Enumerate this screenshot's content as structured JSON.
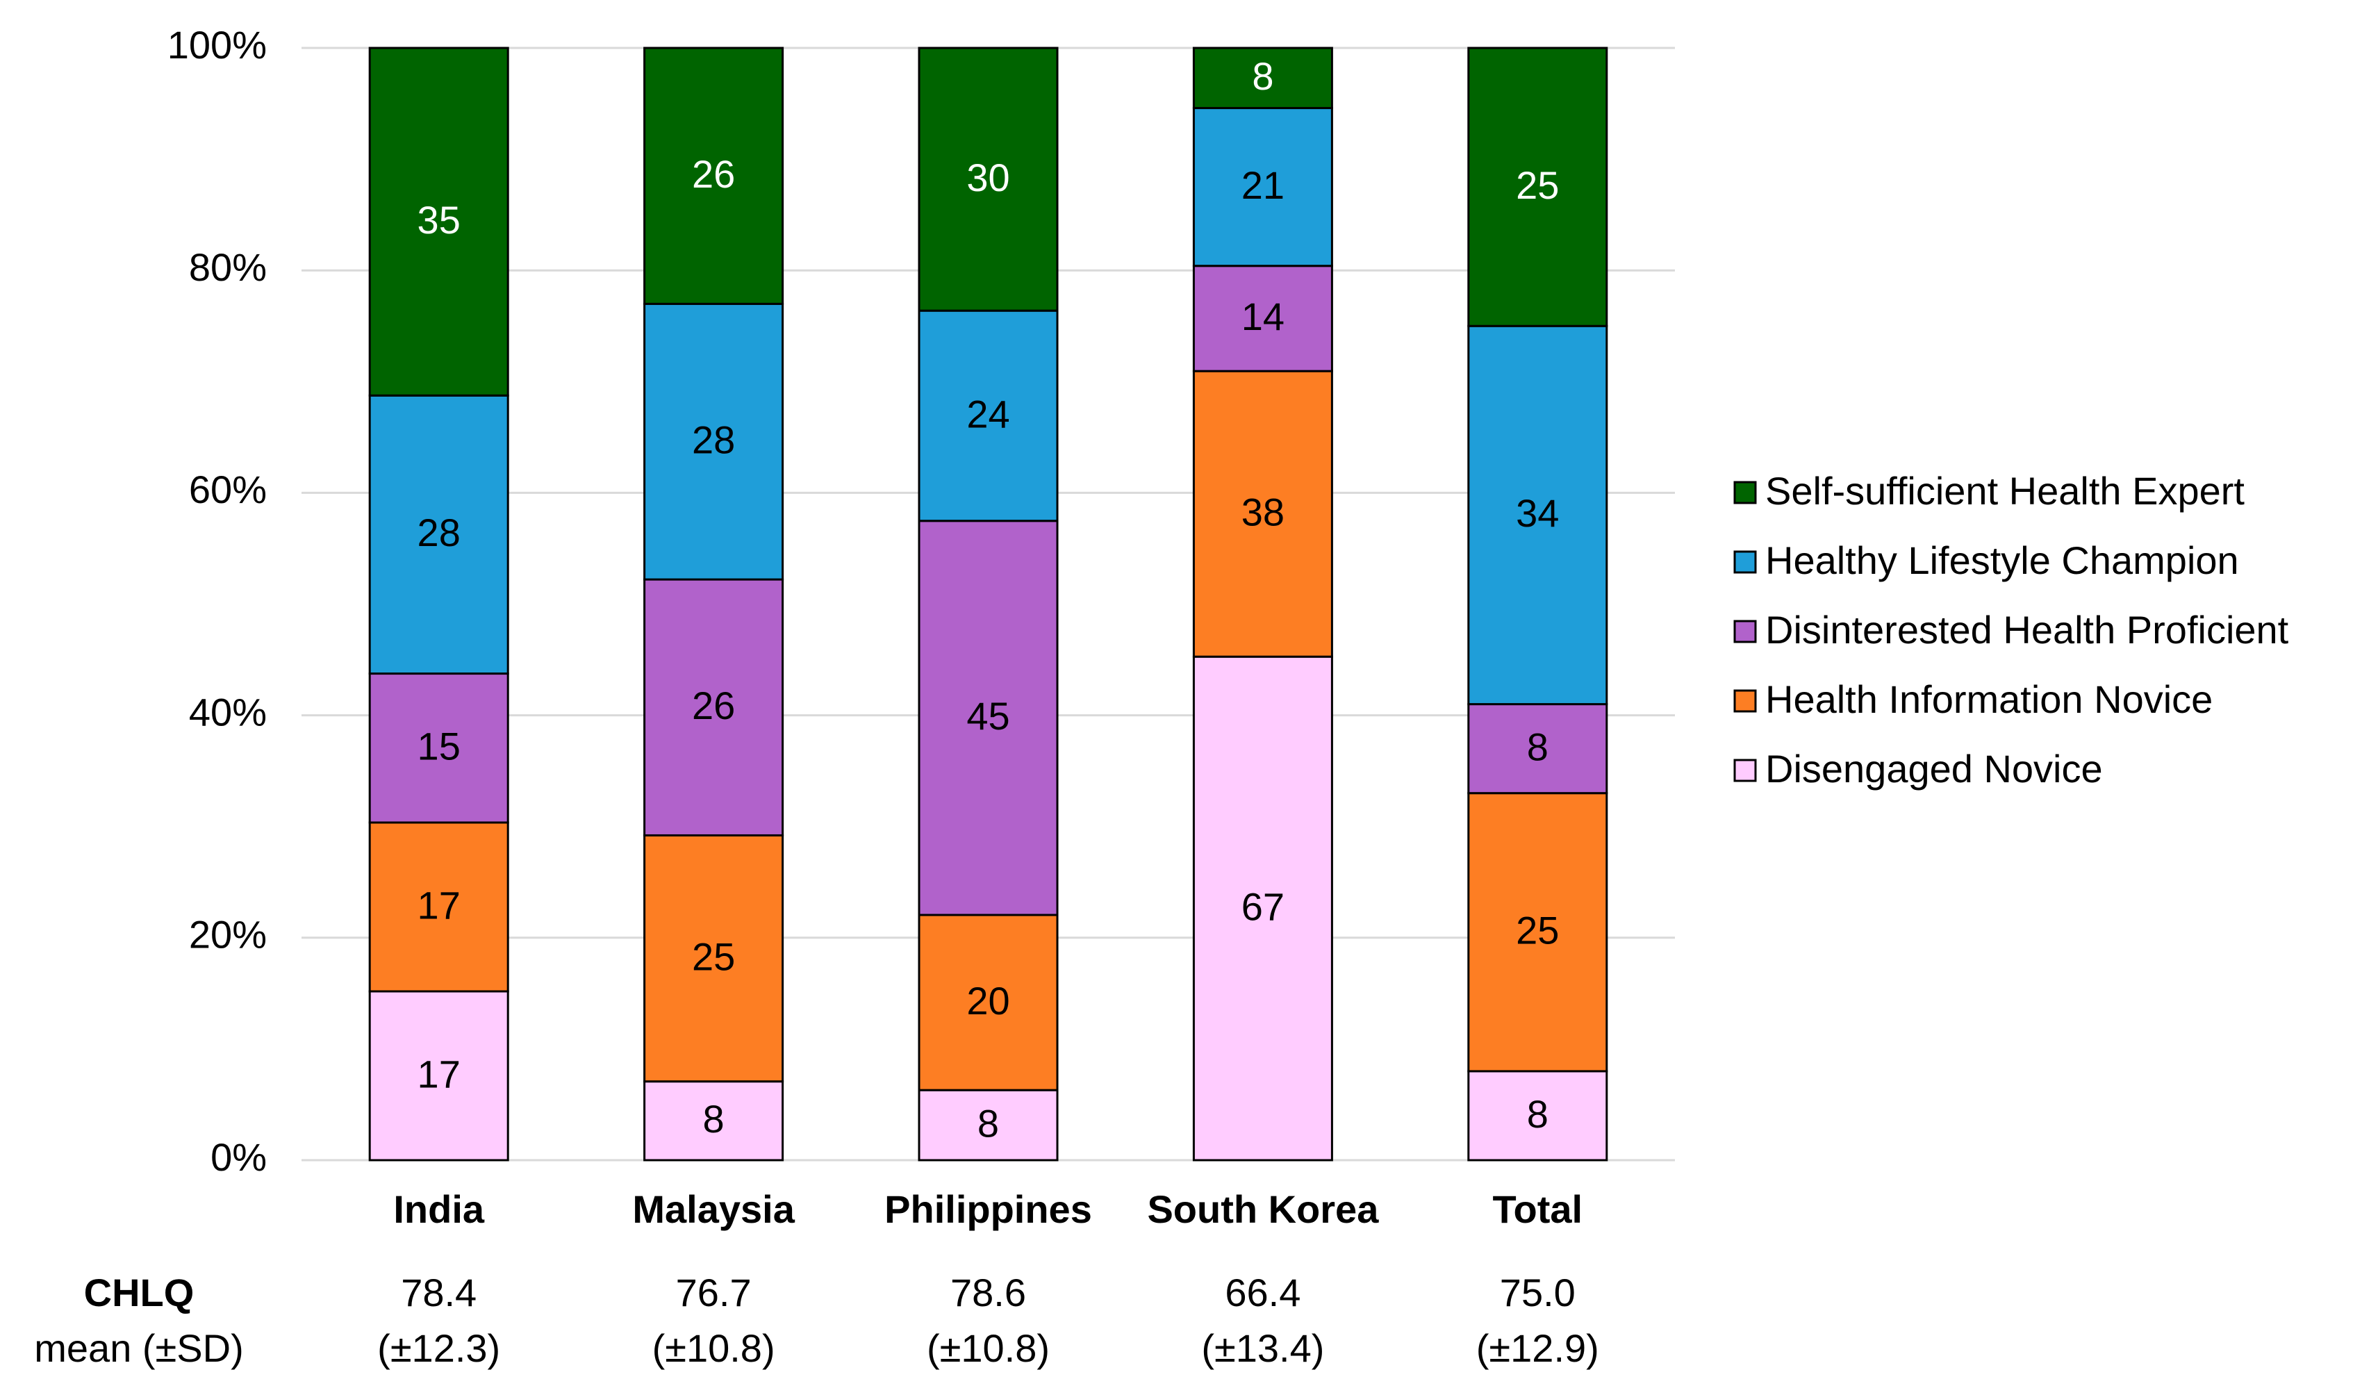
{
  "chart_data": {
    "type": "bar",
    "stacked": "percent",
    "categories": [
      "India",
      "Malaysia",
      "Philippines",
      "South Korea",
      "Total"
    ],
    "series": [
      {
        "name": "Disengaged Novice",
        "color": "#ffccff",
        "label_color": "#000000",
        "values": [
          17,
          8,
          8,
          67,
          8
        ]
      },
      {
        "name": "Health Information Novice",
        "color": "#fd7e23",
        "label_color": "#000000",
        "values": [
          17,
          25,
          20,
          38,
          25
        ]
      },
      {
        "name": "Disinterested Health Proficient",
        "color": "#b162cb",
        "label_color": "#000000",
        "values": [
          15,
          26,
          45,
          14,
          8
        ]
      },
      {
        "name": "Healthy Lifestyle Champion",
        "color": "#1f9ed9",
        "label_color": "#000000",
        "values": [
          28,
          28,
          24,
          21,
          34
        ]
      },
      {
        "name": "Self-sufficient Health Expert",
        "color": "#006400",
        "label_color": "#ffffff",
        "values": [
          35,
          26,
          30,
          8,
          25
        ]
      }
    ],
    "ylim": [
      0,
      100
    ],
    "yticks": [
      {
        "value": 0,
        "label": "0%"
      },
      {
        "value": 20,
        "label": "20%"
      },
      {
        "value": 40,
        "label": "40%"
      },
      {
        "value": 60,
        "label": "60%"
      },
      {
        "value": 80,
        "label": "80%"
      },
      {
        "value": 100,
        "label": "100%"
      }
    ],
    "grid": true,
    "legend": "right",
    "chlq": {
      "title": "CHLQ",
      "subtitle": "mean (±SD)",
      "means": [
        "78.4",
        "76.7",
        "78.6",
        "66.4",
        "75.0"
      ],
      "sds": [
        "(±12.3)",
        "(±10.8)",
        "(±10.8)",
        "(±13.4)",
        "(±12.9)"
      ]
    }
  }
}
